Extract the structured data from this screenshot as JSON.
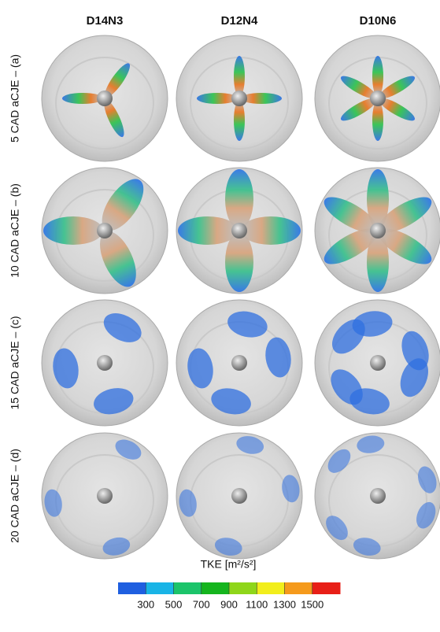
{
  "columns": [
    "D14N3",
    "D12N4",
    "D10N6"
  ],
  "rows": [
    "5 CAD aCJE – (a)",
    "10 CAD aCJE – (b)",
    "15 CAD aCJE – (c)",
    "20 CAD aCJE – (d)"
  ],
  "colorbar": {
    "title": "TKE [m²/s²]",
    "lim": [
      100,
      1700
    ],
    "ticks": [
      300,
      500,
      700,
      900,
      1100,
      1300,
      1500
    ],
    "colors": [
      "#1f5fe0",
      "#19b4e6",
      "#1cc46a",
      "#15b51e",
      "#8fd61a",
      "#f2ee1c",
      "#f59a1c",
      "#e81f17"
    ]
  }
}
